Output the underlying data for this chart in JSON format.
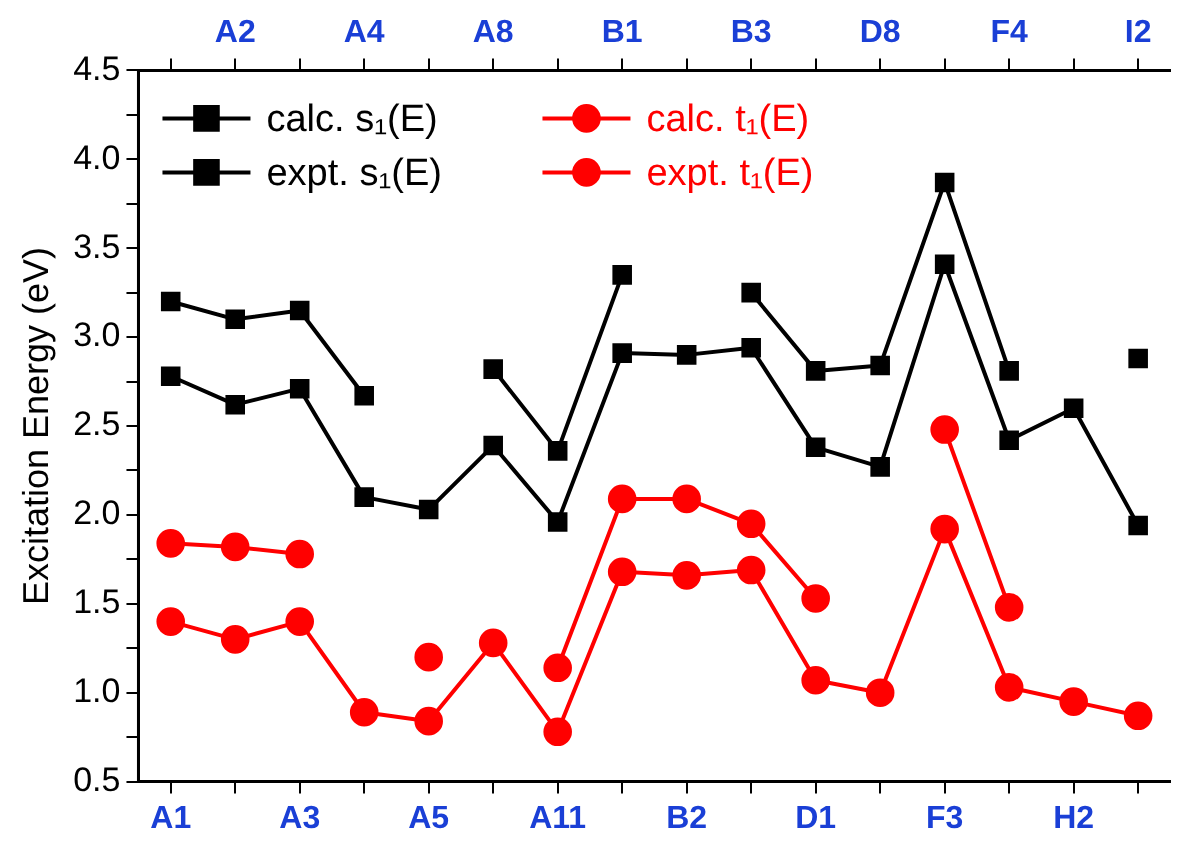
{
  "chart_data": {
    "type": "line",
    "ylabel": "Excitation Energy (eV)",
    "categories": [
      "A1",
      "A2",
      "A3",
      "A4",
      "A5",
      "A8",
      "A11",
      "B1",
      "B2",
      "B3",
      "D1",
      "D8",
      "F3",
      "F4",
      "H2",
      "I2"
    ],
    "ylim": [
      0.5,
      4.5
    ],
    "yticks": [
      {
        "value": 0.5,
        "label": "0.5"
      },
      {
        "value": 0.75,
        "label": null
      },
      {
        "value": 1,
        "label": "1.0"
      },
      {
        "value": 1.25,
        "label": null
      },
      {
        "value": 1.5,
        "label": "1.5"
      },
      {
        "value": 1.75,
        "label": null
      },
      {
        "value": 2,
        "label": "2.0"
      },
      {
        "value": 2.25,
        "label": null
      },
      {
        "value": 2.5,
        "label": "2.5"
      },
      {
        "value": 2.75,
        "label": null
      },
      {
        "value": 3,
        "label": "3.0"
      },
      {
        "value": 3.25,
        "label": null
      },
      {
        "value": 3.5,
        "label": "3.5"
      },
      {
        "value": 3.75,
        "label": null
      },
      {
        "value": 4,
        "label": "4.0"
      },
      {
        "value": 4.25,
        "label": null
      },
      {
        "value": 4.5,
        "label": "4.5"
      }
    ],
    "grid": false,
    "legend": "top left",
    "line_style": "solid",
    "series": [
      {
        "name": "calc. s₁(E)",
        "color": "#000000",
        "marker": "square",
        "values": [
          2.78,
          2.62,
          2.71,
          2.1,
          2.03,
          2.39,
          1.96,
          2.91,
          2.9,
          2.94,
          2.38,
          2.27,
          3.41,
          2.42,
          2.6,
          1.94
        ]
      },
      {
        "name": "expt. s₁(E)",
        "color": "#000000",
        "marker": "square",
        "values": [
          3.2,
          3.1,
          3.15,
          2.67,
          null,
          2.82,
          2.36,
          3.35,
          null,
          3.25,
          2.81,
          2.84,
          3.87,
          2.81,
          null,
          2.88
        ]
      },
      {
        "name": "calc. t₁(E)",
        "color": "#ff0000",
        "marker": "circle",
        "values": [
          1.4,
          1.3,
          1.4,
          0.89,
          0.84,
          1.28,
          0.78,
          1.68,
          1.66,
          1.69,
          1.07,
          1.0,
          1.92,
          1.03,
          0.95,
          0.87
        ]
      },
      {
        "name": "expt. t₁(E)",
        "color": "#ff0000",
        "marker": "circle",
        "values": [
          1.84,
          1.82,
          1.78,
          null,
          1.2,
          null,
          1.14,
          2.09,
          2.09,
          1.95,
          1.53,
          null,
          2.48,
          1.48,
          null,
          null
        ]
      }
    ]
  }
}
